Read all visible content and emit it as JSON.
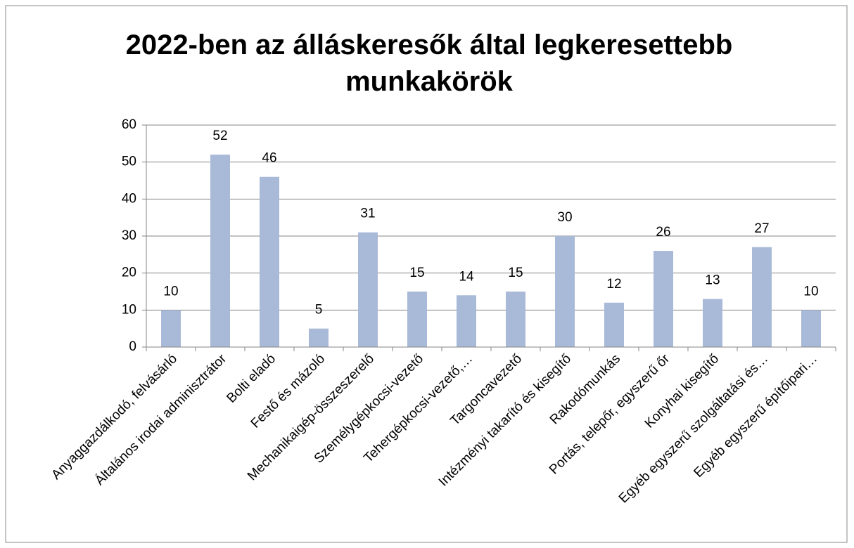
{
  "chart_data": {
    "type": "bar",
    "title": "2022-ben az álláskeresők által legkeresettebb munkakörök",
    "categories": [
      "Anyaggazdálkodó, felvásárló",
      "Általános irodai adminisztrátor",
      "Bolti eladó",
      "Festő és mázoló",
      "Mechanikaigép-összeszerelő",
      "Személygépkocsi-vezető",
      "Tehergépkocsi-vezető,…",
      "Targoncavezető",
      "Intézményi takarító és kisegítő",
      "Rakodómunkás",
      "Portás, telepőr, egyszerű őr",
      "Konyhai kisegítő",
      "Egyéb egyszerű szolgáltatási és…",
      "Egyéb egyszerű építőipari…"
    ],
    "values": [
      10,
      52,
      46,
      5,
      31,
      15,
      14,
      15,
      30,
      12,
      26,
      13,
      27,
      10
    ],
    "color": "#a9b9d8",
    "ylim": [
      0,
      60
    ],
    "yticks": [
      0,
      10,
      20,
      30,
      40,
      50,
      60
    ],
    "grid": true
  }
}
